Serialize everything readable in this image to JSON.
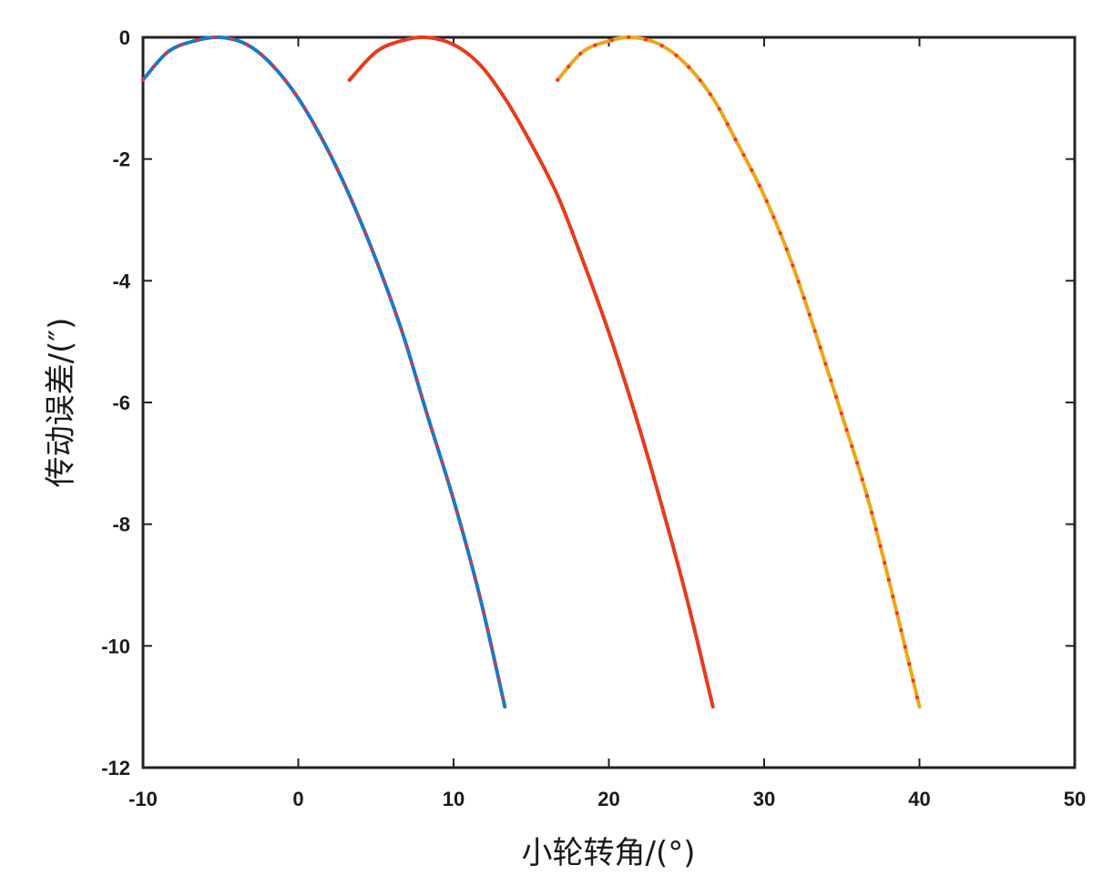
{
  "chart_data": {
    "type": "line",
    "xlabel": "小轮转角/(°)",
    "ylabel": "传动误差/(″)",
    "xlim": [
      -10,
      50
    ],
    "ylim": [
      -12,
      0
    ],
    "xticks": [
      -10,
      0,
      10,
      20,
      30,
      40,
      50
    ],
    "yticks": [
      -12,
      -10,
      -8,
      -6,
      -4,
      -2,
      0
    ],
    "grid": false,
    "legend": "none",
    "series": [
      {
        "color": "#1f77c4",
        "marker_color": "#ff2a2a",
        "x": [
          -10,
          -8.4,
          -6.7,
          -5.0,
          -3.3,
          -1.7,
          0.0,
          1.7,
          3.3,
          5.0,
          6.7,
          8.3,
          10.0,
          11.7,
          13.3
        ],
        "y": [
          -0.7,
          -0.24,
          -0.06,
          0.0,
          -0.12,
          -0.45,
          -1.0,
          -1.75,
          -2.6,
          -3.65,
          -4.85,
          -6.2,
          -7.6,
          -9.2,
          -11.0
        ]
      },
      {
        "color": "#e0401a",
        "marker_color": "#ff2a2a",
        "x": [
          3.3,
          5.0,
          6.6,
          8.2,
          10.0,
          11.7,
          13.3,
          15.0,
          16.7,
          18.3,
          20.0,
          21.7,
          23.3,
          25.0,
          26.7
        ],
        "y": [
          -0.7,
          -0.24,
          -0.06,
          0.0,
          -0.12,
          -0.45,
          -1.0,
          -1.75,
          -2.6,
          -3.65,
          -4.85,
          -6.2,
          -7.6,
          -9.2,
          -11.0
        ]
      },
      {
        "color": "#e8a818",
        "marker_color": "#ff2a2a",
        "x": [
          16.7,
          18.3,
          20.0,
          21.5,
          23.3,
          25.0,
          26.7,
          28.3,
          30.0,
          31.7,
          33.3,
          35.0,
          36.7,
          38.3,
          40.0
        ],
        "y": [
          -0.7,
          -0.24,
          -0.06,
          0.0,
          -0.12,
          -0.45,
          -1.0,
          -1.75,
          -2.6,
          -3.65,
          -4.85,
          -6.2,
          -7.6,
          -9.2,
          -11.0
        ]
      }
    ]
  }
}
